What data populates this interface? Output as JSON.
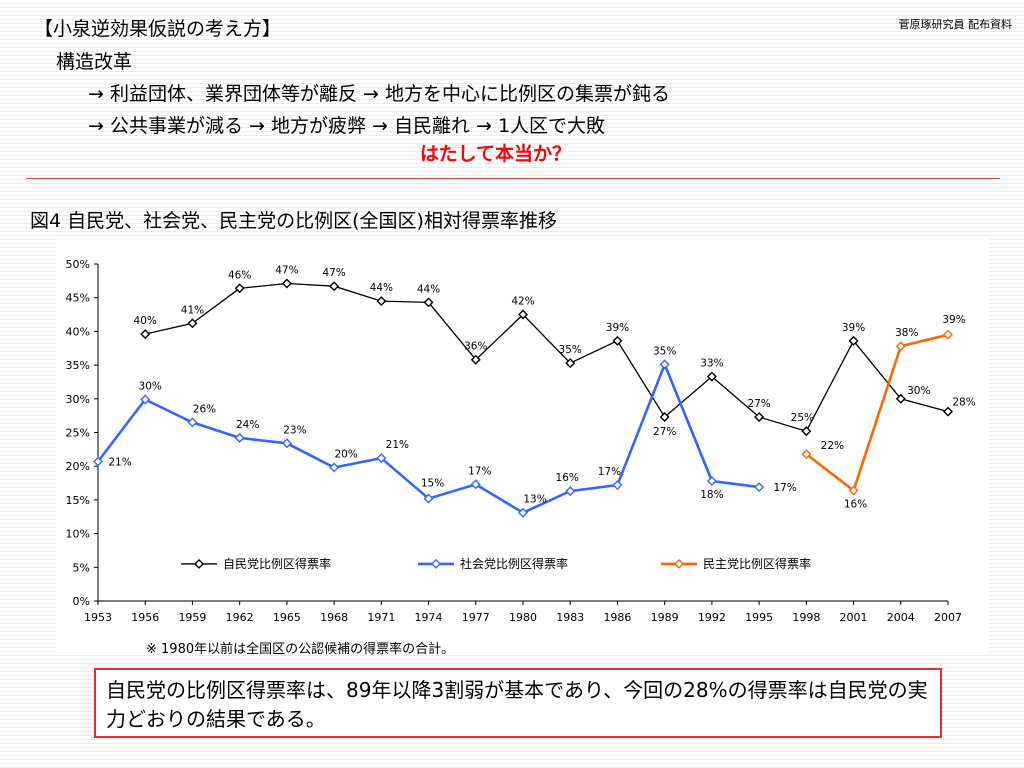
{
  "credit": "菅原琢研究員 配布資料",
  "header": {
    "title": "【小泉逆効果仮説の考え方】",
    "subtitle": "構造改革",
    "line1": "→ 利益団体、業界団体等が離反 → 地方を中心に比例区の集票が鈍る",
    "line2": "→ 公共事業が減る → 地方が疲弊 → 自民離れ → 1人区で大敗",
    "question": "はたして本当か？"
  },
  "figure_title": "図4 自民党、社会党、民主党の比例区(全国区)相対得票率推移",
  "footnote": "※ 1980年以前は全国区の公認候補の得票率の合計。",
  "conclusion": "自民党の比例区得票率は、89年以降3割弱が基本であり、今回の28%の得票率は自民党の実力どおりの結果である。",
  "chart_data": {
    "type": "line",
    "x": [
      "1953",
      "1956",
      "1959",
      "1962",
      "1965",
      "1968",
      "1971",
      "1974",
      "1977",
      "1980",
      "1983",
      "1986",
      "1989",
      "1992",
      "1995",
      "1998",
      "2001",
      "2004",
      "2007"
    ],
    "ylim": [
      0,
      50
    ],
    "yticks": [
      "0%",
      "5%",
      "10%",
      "15%",
      "20%",
      "25%",
      "30%",
      "35%",
      "40%",
      "45%",
      "50%"
    ],
    "legend_position": "middle",
    "grid": false,
    "series": [
      {
        "name": "自民党比例区得票率",
        "color": "#000000",
        "values": [
          null,
          39.6,
          41.2,
          46.4,
          47.1,
          46.7,
          44.5,
          44.3,
          35.8,
          42.5,
          35.3,
          38.6,
          27.3,
          33.3,
          27.3,
          25.2,
          38.6,
          30.0,
          28.1
        ],
        "labels": [
          null,
          "40%",
          "41%",
          "46%",
          "47%",
          "47%",
          "44%",
          "44%",
          "36%",
          "42%",
          "35%",
          "39%",
          "27%",
          "33%",
          "27%",
          "25%",
          "39%",
          "30%",
          "28%"
        ]
      },
      {
        "name": "社会党比例区得票率",
        "color": "#3366ff",
        "values": [
          20.7,
          29.9,
          26.5,
          24.2,
          23.4,
          19.8,
          21.2,
          15.2,
          17.3,
          13.1,
          16.3,
          17.2,
          35.1,
          17.8,
          16.9,
          null,
          null,
          null,
          null
        ],
        "labels": [
          "21%",
          "30%",
          "26%",
          "24%",
          "23%",
          "20%",
          "21%",
          "15%",
          "17%",
          "13%",
          "16%",
          "17%",
          "35%",
          "18%",
          "17%",
          null,
          null,
          null,
          null
        ]
      },
      {
        "name": "民主党比例区得票率",
        "color": "#ff6600",
        "values": [
          null,
          null,
          null,
          null,
          null,
          null,
          null,
          null,
          null,
          null,
          null,
          null,
          null,
          null,
          null,
          21.8,
          16.4,
          37.8,
          39.5
        ],
        "labels": [
          null,
          null,
          null,
          null,
          null,
          null,
          null,
          null,
          null,
          null,
          null,
          null,
          null,
          null,
          null,
          "22%",
          "16%",
          "38%",
          "39%"
        ]
      }
    ]
  }
}
